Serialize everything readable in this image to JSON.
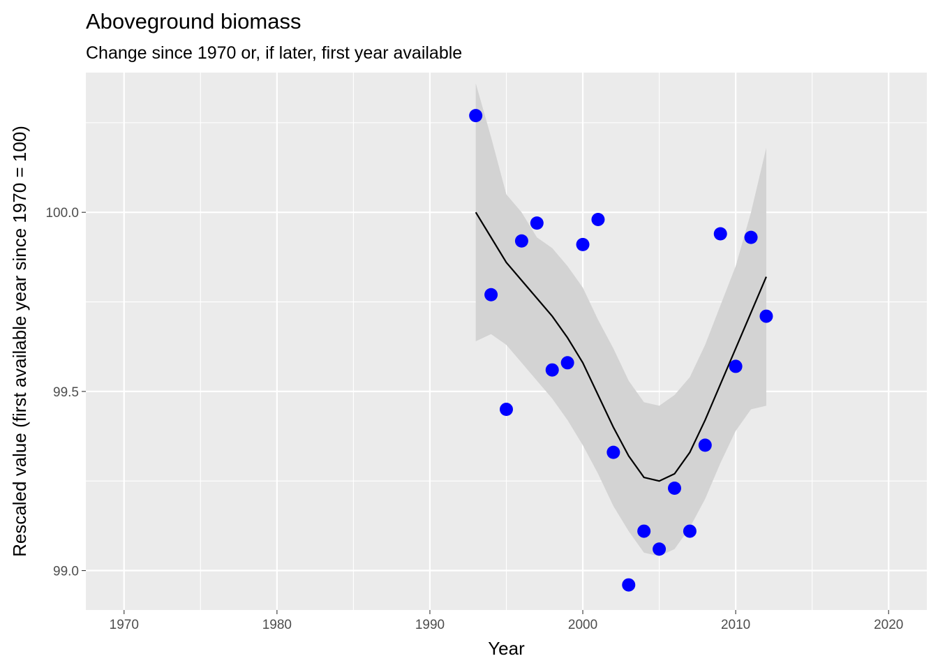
{
  "chart_data": {
    "type": "scatter",
    "title": "Aboveground biomass",
    "subtitle": "Change since 1970 or, if later, first year available",
    "xlabel": "Year",
    "ylabel": "Rescaled value (first available year since 1970 = 100)",
    "xlim": [
      1967.5,
      2022.5
    ],
    "ylim": [
      98.89,
      100.39
    ],
    "x_ticks": [
      1970,
      1980,
      1990,
      2000,
      2010,
      2020
    ],
    "y_ticks": [
      99.0,
      99.5,
      100.0
    ],
    "y_tick_labels": [
      "99.0",
      "99.5",
      "100.0"
    ],
    "grid": true,
    "legend": "none",
    "colors": {
      "panel": "#ebebeb",
      "grid": "#ffffff",
      "points": "#0000ff",
      "trend": "#000000",
      "ribbon": "#d3d3d3"
    },
    "series": [
      {
        "type": "scatter",
        "x": [
          1993,
          1994,
          1995,
          1996,
          1997,
          1998,
          1999,
          2000,
          2001,
          2002,
          2003,
          2004,
          2005,
          2006,
          2007,
          2008,
          2009,
          2010,
          2011,
          2012
        ],
        "y": [
          100.27,
          99.77,
          99.45,
          99.92,
          99.97,
          99.56,
          99.58,
          99.91,
          99.98,
          99.33,
          98.96,
          99.11,
          99.06,
          99.23,
          99.11,
          99.35,
          99.94,
          99.57,
          99.93,
          99.71
        ]
      },
      {
        "type": "line",
        "x": [
          1993,
          1994,
          1995,
          1996,
          1997,
          1998,
          1999,
          2000,
          2001,
          2002,
          2003,
          2004,
          2005,
          2006,
          2007,
          2008,
          2009,
          2010,
          2011,
          2012
        ],
        "y": [
          100.0,
          99.93,
          99.86,
          99.81,
          99.76,
          99.71,
          99.65,
          99.58,
          99.49,
          99.4,
          99.32,
          99.26,
          99.25,
          99.27,
          99.33,
          99.42,
          99.52,
          99.62,
          99.72,
          99.82
        ],
        "lower": [
          99.64,
          99.66,
          99.63,
          99.58,
          99.53,
          99.48,
          99.42,
          99.35,
          99.27,
          99.18,
          99.11,
          99.05,
          99.04,
          99.06,
          99.12,
          99.2,
          99.3,
          99.39,
          99.45,
          99.46
        ],
        "upper": [
          100.36,
          100.21,
          100.05,
          100.0,
          99.93,
          99.9,
          99.85,
          99.79,
          99.7,
          99.62,
          99.53,
          99.47,
          99.46,
          99.49,
          99.54,
          99.63,
          99.74,
          99.85,
          100.0,
          100.18
        ]
      }
    ]
  }
}
